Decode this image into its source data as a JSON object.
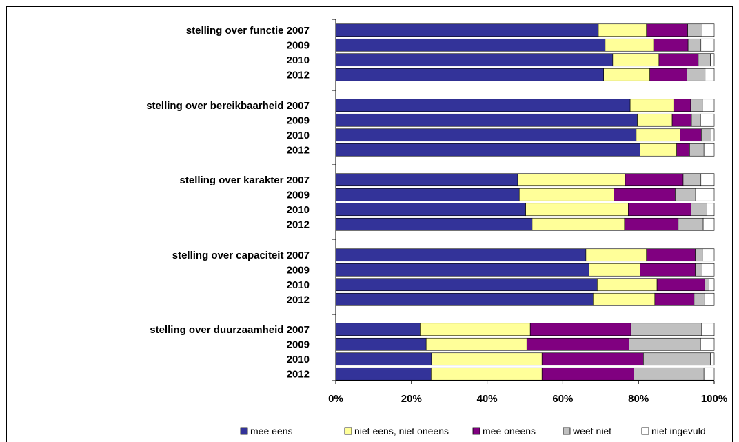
{
  "chart_data": {
    "type": "bar",
    "orientation": "horizontal",
    "stacked": true,
    "percent": true,
    "categories": [
      "stelling over functie 2007",
      "2009",
      "2010",
      "2012",
      "stelling over bereikbaarheid 2007",
      "2009",
      "2010",
      "2012",
      "stelling over karakter 2007",
      "2009",
      "2010",
      "2012",
      "stelling over capaciteit 2007",
      "2009",
      "2010",
      "2012",
      "stelling over duurzaamheid 2007",
      "2009",
      "2010",
      "2012"
    ],
    "series": [
      {
        "name": "mee eens",
        "color": "#333399",
        "values": [
          69.4,
          71.2,
          73.2,
          70.8,
          77.8,
          79.7,
          79.4,
          80.4,
          48.1,
          48.5,
          50.2,
          51.9,
          66.1,
          66.9,
          69.1,
          68.0,
          22.3,
          23.9,
          25.3,
          25.2
        ]
      },
      {
        "name": "niet eens, niet oneens",
        "color": "#FFFF99",
        "values": [
          12.7,
          12.8,
          12.2,
          12.2,
          11.5,
          9.2,
          11.6,
          9.7,
          28.4,
          25.0,
          27.1,
          24.4,
          16.0,
          13.5,
          15.8,
          16.3,
          29.1,
          26.6,
          29.2,
          29.3
        ]
      },
      {
        "name": "mee oneens",
        "color": "#800080",
        "values": [
          10.9,
          9.1,
          10.4,
          9.8,
          4.5,
          5.1,
          5.6,
          3.4,
          15.3,
          16.2,
          16.6,
          14.2,
          12.9,
          14.6,
          12.6,
          10.4,
          26.6,
          27.0,
          26.8,
          24.3
        ]
      },
      {
        "name": "weet niet",
        "color": "#C0C0C0",
        "values": [
          3.8,
          3.4,
          3.2,
          4.8,
          3.1,
          2.4,
          2.6,
          3.8,
          4.7,
          5.4,
          4.2,
          6.6,
          1.9,
          1.8,
          1.1,
          2.8,
          18.7,
          18.9,
          17.7,
          18.5
        ]
      },
      {
        "name": "niet ingevuld",
        "color": "#FFFFFF",
        "values": [
          3.2,
          3.5,
          1.0,
          2.4,
          3.1,
          3.6,
          0.8,
          2.7,
          3.5,
          4.9,
          1.9,
          2.9,
          3.1,
          3.2,
          1.4,
          2.5,
          3.3,
          3.6,
          1.0,
          2.7
        ]
      }
    ],
    "x_ticks": [
      "0%",
      "20%",
      "40%",
      "60%",
      "80%",
      "100%"
    ],
    "xlim": [
      0,
      100
    ],
    "title": "",
    "xlabel": "",
    "ylabel": "",
    "grid": false,
    "legend_position": "bottom"
  }
}
